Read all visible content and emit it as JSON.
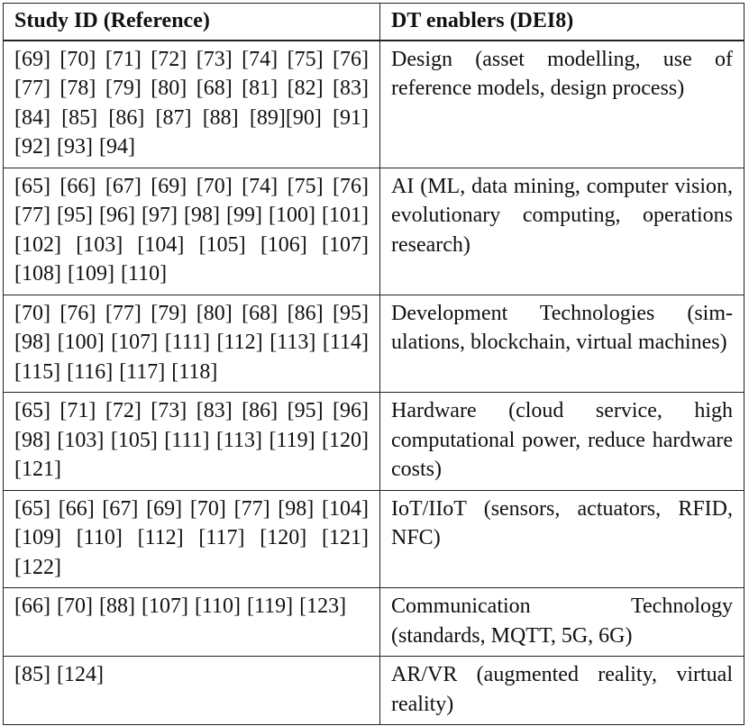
{
  "table": {
    "headers": {
      "study": "Study ID (Reference)",
      "enablers": "DT enablers (DEI8)"
    },
    "rows": [
      {
        "refs": "[69] [70] [71] [72] [73] [74] [75] [76] [77] [78] [79] [80] [68] [81] [82] [83] [84] [85] [86] [87] [88] [89][90] [91] [92] [93] [94]",
        "enabler": "Design (asset modelling, use of reference models, design process)"
      },
      {
        "refs": "[65] [66] [67] [69] [70] [74] [75] [76] [77] [95] [96] [97] [98] [99] [100] [101] [102] [103] [104] [105] [106] [107] [108] [109] [110]",
        "enabler": "AI (ML, data mining, computer vi­sion, evolutionary computing, op­erations research)"
      },
      {
        "refs": "[70] [76] [77] [79] [80] [68] [86] [95] [98] [100] [107] [111] [112] [113] [114] [115] [116] [117] [118]",
        "enabler": "Development Technologies (sim­ulations, blockchain, virtual ma­chines)"
      },
      {
        "refs": "[65] [71] [72] [73] [83] [86] [95] [96] [98] [103] [105] [111] [113] [119] [120] [121]",
        "enabler": "Hardware (cloud service, high computational power, reduce hardware costs)"
      },
      {
        "refs": "[65] [66] [67] [69] [70] [77] [98] [104] [109] [110] [112] [117] [120] [121] [122]",
        "enabler": "IoT/IIoT (sensors, actuators, RFID, NFC)"
      },
      {
        "refs": "[66] [70] [88] [107] [110] [119] [123]",
        "enabler": "Communication Technology (standards, MQTT, 5G, 6G)"
      },
      {
        "refs": "[85] [124]",
        "enabler": "AR/VR (augmented reality, virtual reality)"
      }
    ]
  }
}
